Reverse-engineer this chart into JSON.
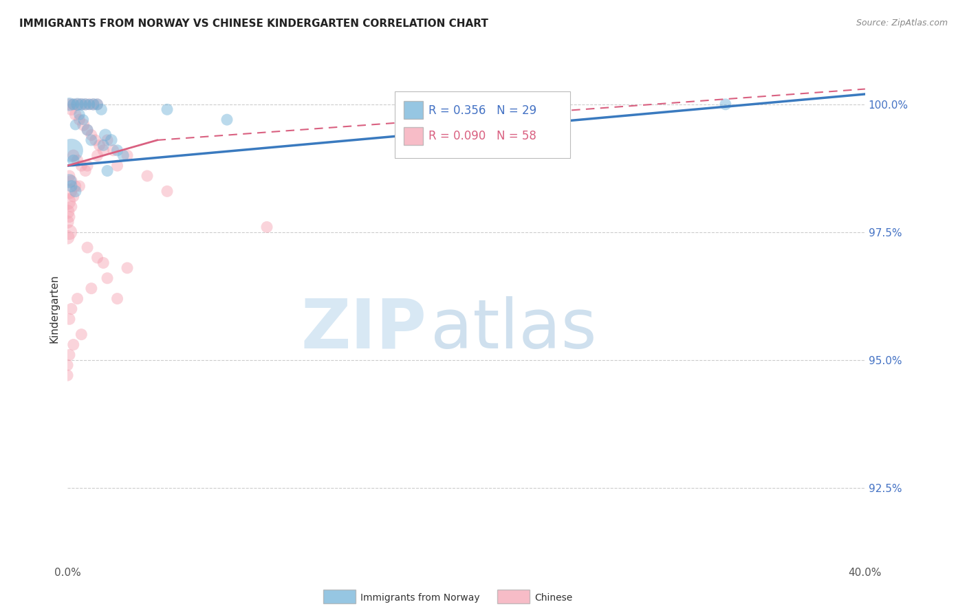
{
  "title": "IMMIGRANTS FROM NORWAY VS CHINESE KINDERGARTEN CORRELATION CHART",
  "source": "Source: ZipAtlas.com",
  "ylabel": "Kindergarten",
  "ytick_labels": [
    "100.0%",
    "97.5%",
    "95.0%",
    "92.5%"
  ],
  "ytick_values": [
    1.0,
    0.975,
    0.95,
    0.925
  ],
  "xlim": [
    0.0,
    0.4
  ],
  "ylim": [
    0.91,
    1.01
  ],
  "legend_blue_r": "R = 0.356",
  "legend_blue_n": "N = 29",
  "legend_pink_r": "R = 0.090",
  "legend_pink_n": "N = 58",
  "legend_label_blue": "Immigrants from Norway",
  "legend_label_pink": "Chinese",
  "blue_color": "#6aaed6",
  "pink_color": "#f4a0b0",
  "blue_line_color": "#3a7abf",
  "pink_line_color": "#d96080",
  "blue_line": [
    [
      0.0,
      0.988
    ],
    [
      0.4,
      1.002
    ]
  ],
  "pink_line_solid": [
    [
      0.0,
      0.988
    ],
    [
      0.045,
      0.993
    ]
  ],
  "pink_line_dashed": [
    [
      0.045,
      0.993
    ],
    [
      0.4,
      1.003
    ]
  ],
  "blue_points": [
    [
      0.001,
      1.0,
      200
    ],
    [
      0.003,
      1.0,
      150
    ],
    [
      0.005,
      1.0,
      180
    ],
    [
      0.007,
      1.0,
      160
    ],
    [
      0.009,
      1.0,
      160
    ],
    [
      0.011,
      1.0,
      140
    ],
    [
      0.013,
      1.0,
      160
    ],
    [
      0.015,
      1.0,
      150
    ],
    [
      0.017,
      0.999,
      150
    ],
    [
      0.006,
      0.998,
      140
    ],
    [
      0.008,
      0.997,
      130
    ],
    [
      0.004,
      0.996,
      130
    ],
    [
      0.01,
      0.995,
      150
    ],
    [
      0.019,
      0.994,
      170
    ],
    [
      0.022,
      0.993,
      160
    ],
    [
      0.002,
      0.991,
      600
    ],
    [
      0.025,
      0.991,
      150
    ],
    [
      0.003,
      0.989,
      160
    ],
    [
      0.05,
      0.999,
      150
    ],
    [
      0.08,
      0.997,
      150
    ],
    [
      0.21,
      1.0,
      150
    ],
    [
      0.33,
      1.0,
      150
    ],
    [
      0.001,
      0.985,
      220
    ],
    [
      0.002,
      0.984,
      160
    ],
    [
      0.004,
      0.983,
      160
    ],
    [
      0.012,
      0.993,
      150
    ],
    [
      0.018,
      0.992,
      150
    ],
    [
      0.028,
      0.99,
      150
    ],
    [
      0.02,
      0.987,
      150
    ]
  ],
  "pink_points": [
    [
      0.001,
      1.0,
      150
    ],
    [
      0.003,
      1.0,
      150
    ],
    [
      0.005,
      1.0,
      160
    ],
    [
      0.007,
      1.0,
      160
    ],
    [
      0.009,
      1.0,
      150
    ],
    [
      0.011,
      1.0,
      150
    ],
    [
      0.013,
      1.0,
      150
    ],
    [
      0.015,
      1.0,
      150
    ],
    [
      0.002,
      0.999,
      160
    ],
    [
      0.004,
      0.998,
      160
    ],
    [
      0.006,
      0.997,
      150
    ],
    [
      0.008,
      0.996,
      170
    ],
    [
      0.01,
      0.995,
      150
    ],
    [
      0.012,
      0.994,
      150
    ],
    [
      0.014,
      0.993,
      150
    ],
    [
      0.016,
      0.992,
      150
    ],
    [
      0.018,
      0.991,
      150
    ],
    [
      0.003,
      0.99,
      160
    ],
    [
      0.005,
      0.989,
      160
    ],
    [
      0.007,
      0.988,
      150
    ],
    [
      0.009,
      0.987,
      150
    ],
    [
      0.001,
      0.986,
      150
    ],
    [
      0.002,
      0.985,
      160
    ],
    [
      0.004,
      0.984,
      150
    ],
    [
      0.001,
      0.983,
      260
    ],
    [
      0.0,
      0.981,
      300
    ],
    [
      0.0,
      0.979,
      220
    ],
    [
      0.0,
      0.977,
      190
    ],
    [
      0.023,
      0.991,
      150
    ],
    [
      0.03,
      0.99,
      150
    ],
    [
      0.025,
      0.988,
      150
    ],
    [
      0.02,
      0.993,
      150
    ],
    [
      0.015,
      0.99,
      150
    ],
    [
      0.01,
      0.988,
      150
    ],
    [
      0.006,
      0.984,
      150
    ],
    [
      0.003,
      0.982,
      150
    ],
    [
      0.002,
      0.98,
      150
    ],
    [
      0.001,
      0.978,
      150
    ],
    [
      0.04,
      0.986,
      150
    ],
    [
      0.05,
      0.983,
      150
    ],
    [
      0.1,
      0.976,
      150
    ],
    [
      0.001,
      0.975,
      260
    ],
    [
      0.0,
      0.974,
      220
    ],
    [
      0.01,
      0.972,
      150
    ],
    [
      0.015,
      0.97,
      150
    ],
    [
      0.018,
      0.969,
      150
    ],
    [
      0.03,
      0.968,
      150
    ],
    [
      0.02,
      0.966,
      150
    ],
    [
      0.012,
      0.964,
      150
    ],
    [
      0.005,
      0.962,
      150
    ],
    [
      0.002,
      0.96,
      150
    ],
    [
      0.001,
      0.958,
      150
    ],
    [
      0.025,
      0.962,
      150
    ],
    [
      0.007,
      0.955,
      150
    ],
    [
      0.003,
      0.953,
      150
    ],
    [
      0.001,
      0.951,
      150
    ],
    [
      0.0,
      0.949,
      150
    ],
    [
      0.0,
      0.947,
      150
    ]
  ]
}
